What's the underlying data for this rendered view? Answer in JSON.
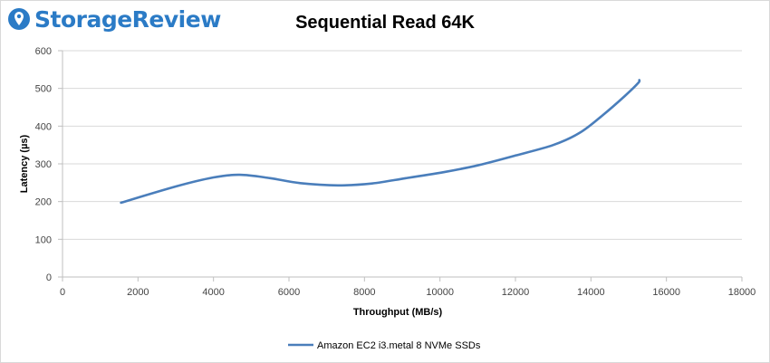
{
  "brand": {
    "name": "StorageReview",
    "color": "#2b7bc6"
  },
  "chart_data": {
    "type": "line",
    "title": "Sequential Read 64K",
    "xlabel": "Throughput (MB/s)",
    "ylabel": "Latency (µs)",
    "xlim": [
      0,
      18000
    ],
    "ylim": [
      0,
      600
    ],
    "xticks": [
      0,
      2000,
      4000,
      6000,
      8000,
      10000,
      12000,
      14000,
      16000,
      18000
    ],
    "yticks": [
      0,
      100,
      200,
      300,
      400,
      500,
      600
    ],
    "grid": true,
    "legend_position": "bottom",
    "series": [
      {
        "name": "Amazon EC2 i3.metal 8 NVMe SSDs",
        "color": "#4a7ebb",
        "x": [
          1550,
          3000,
          4000,
          4700,
          5500,
          6300,
          7300,
          8200,
          9100,
          10100,
          11000,
          12000,
          13000,
          13700,
          14300,
          14900,
          15250,
          15280
        ],
        "y": [
          197,
          240,
          264,
          271,
          262,
          249,
          243,
          248,
          262,
          278,
          296,
          322,
          350,
          382,
          428,
          480,
          514,
          522
        ]
      }
    ]
  }
}
